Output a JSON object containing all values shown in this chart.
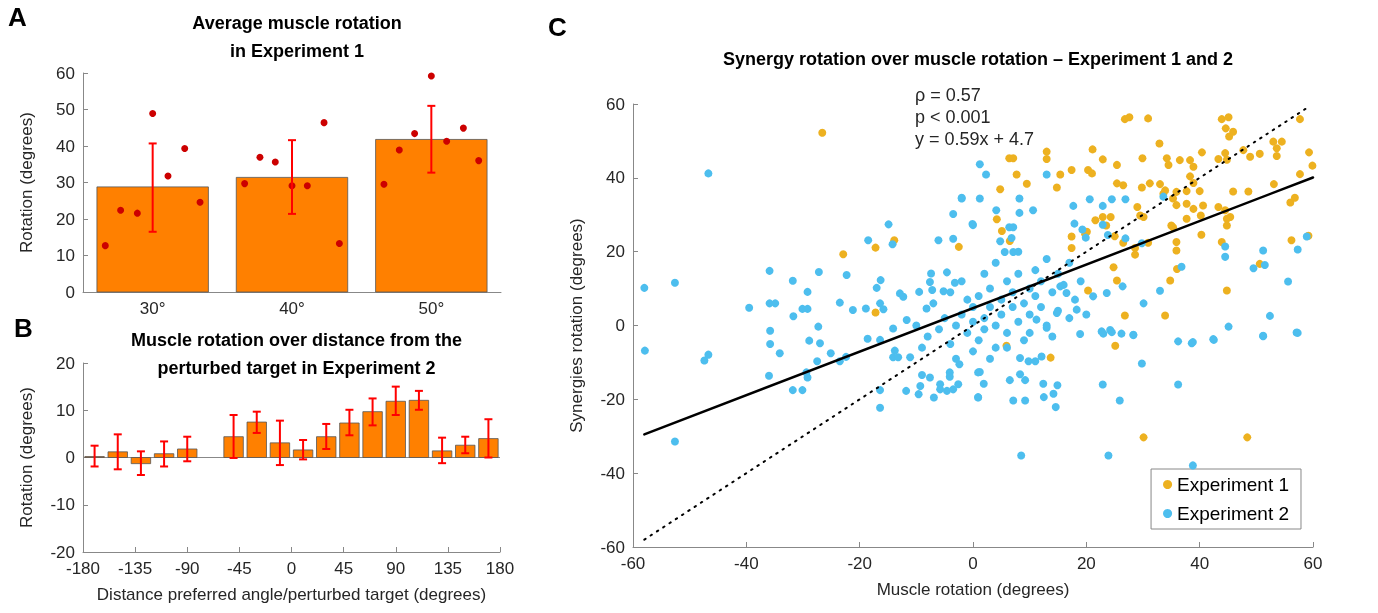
{
  "chart_data": [
    {
      "type": "bar",
      "title": "Average muscle rotation\nin Experiment 1",
      "ylabel": "Rotation (degrees)",
      "annotations": [
        "A"
      ],
      "xlim": [
        25,
        55
      ],
      "xticks": [
        {
          "value": 30,
          "label": "30°"
        },
        {
          "value": 40,
          "label": "40°"
        },
        {
          "value": 50,
          "label": "50°"
        }
      ],
      "ylim": [
        0,
        60
      ],
      "yticks": [
        0,
        10,
        20,
        30,
        40,
        50,
        60
      ],
      "series": [
        {
          "color": "#ff8000",
          "x": [
            30,
            40,
            50
          ],
          "values": [
            28.8,
            31.4,
            41.8
          ],
          "errors": [
            [
              16.5,
              40.7
            ],
            [
              21.4,
              41.6
            ],
            [
              32.7,
              51.0
            ]
          ]
        },
        {
          "type": "scatter",
          "color": "#cc0000",
          "x": [
            26.6,
            27.7,
            28.9,
            30,
            31.1,
            32.3,
            33.4,
            36.6,
            37.7,
            38.8,
            40,
            41.1,
            42.3,
            43.4,
            46.6,
            47.7,
            48.8,
            50,
            51.1,
            52.3,
            53.4
          ],
          "values": [
            12.7,
            22.4,
            21.6,
            48.9,
            31.8,
            39.3,
            24.6,
            29.7,
            36.9,
            35.6,
            29.1,
            29.1,
            46.4,
            13.3,
            29.5,
            38.9,
            43.4,
            59.2,
            41.3,
            44.9,
            36.0
          ]
        }
      ]
    },
    {
      "type": "bar",
      "title": "Muscle rotation over distance from the\nperturbed target in Experiment 2",
      "xlabel": "Distance preferred angle/perturbed target (degrees)",
      "ylabel": "Rotation (degrees)",
      "annotations": [
        "B"
      ],
      "xlim": [
        -180,
        180
      ],
      "xticks": [
        -180,
        -135,
        -90,
        -45,
        0,
        45,
        90,
        135,
        180
      ],
      "ylim": [
        -20,
        20
      ],
      "yticks": [
        -20,
        -10,
        0,
        10,
        20
      ],
      "ref_lines": [
        {
          "axis": "y",
          "value": 0,
          "color": "#888888"
        }
      ],
      "series": [
        {
          "color": "#ff8000",
          "x": [
            -170,
            -150,
            -130,
            -110,
            -90,
            -50,
            -30,
            -10,
            10,
            30,
            50,
            70,
            90,
            110,
            130,
            150,
            170
          ],
          "values": [
            0.2,
            1.2,
            -1.3,
            0.8,
            1.8,
            4.4,
            7.5,
            3.1,
            1.6,
            4.4,
            7.3,
            9.7,
            11.9,
            12.1,
            1.4,
            2.6,
            4.0
          ],
          "errors": [
            [
              -1.9,
              2.5
            ],
            [
              -2.5,
              4.9
            ],
            [
              -3.7,
              1.3
            ],
            [
              -1.9,
              3.4
            ],
            [
              -0.8,
              4.4
            ],
            [
              -0.1,
              9.0
            ],
            [
              5.2,
              9.7
            ],
            [
              -1.6,
              7.8
            ],
            [
              -0.4,
              3.7
            ],
            [
              1.8,
              7.1
            ],
            [
              4.7,
              10.1
            ],
            [
              6.8,
              12.5
            ],
            [
              9.0,
              15.0
            ],
            [
              10.1,
              14.1
            ],
            [
              -1.2,
              4.2
            ],
            [
              0.9,
              4.4
            ],
            [
              0.0,
              8.1
            ]
          ]
        }
      ]
    },
    {
      "type": "scatter",
      "title": "Synergy rotation over muscle rotation – Experiment 1 and 2",
      "xlabel": "Muscle rotation (degrees)",
      "ylabel": "Synergies rotation (degrees)",
      "annotations": [
        "C",
        "ρ = 0.57",
        "p < 0.001",
        "y = 0.59x + 4.7"
      ],
      "xlim": [
        -60,
        60
      ],
      "xticks": [
        -60,
        -40,
        -20,
        0,
        20,
        40,
        60
      ],
      "ylim": [
        -60,
        60
      ],
      "yticks": [
        -60,
        -40,
        -20,
        0,
        20,
        40,
        60
      ],
      "legend": "bottom right",
      "marker": "circle",
      "series": [
        {
          "name": "Experiment 1",
          "color": "#edb120",
          "x": [
            -26.6,
            -22.9,
            -17.2,
            -13.9,
            -17.2,
            -2.5,
            26.8,
            27.6,
            30.9,
            43.9,
            45.1,
            44.6,
            45.9,
            45.2,
            57.7,
            32.9,
            21.1,
            22.9,
            29.9,
            34.2,
            34.5,
            36.5,
            38.3,
            38.9,
            40.4,
            43.3,
            44.5,
            44.8,
            47.7,
            48.9,
            53,
            54.5,
            53.6,
            53.6,
            50.6,
            59.3,
            59.9,
            57.7,
            6.4,
            7.1,
            13,
            13,
            7.7,
            9.5,
            14.8,
            15.4,
            17.4,
            20.3,
            21,
            25.4,
            25.4,
            26.5,
            29.8,
            31.2,
            33,
            33.9,
            33.6,
            35.9,
            35.3,
            35.9,
            38.3,
            38.9,
            37.7,
            40,
            37.7,
            38.9,
            40.6,
            40.2,
            37.7,
            43.3,
            44.5,
            45.4,
            45.9,
            48.6,
            44.8,
            44.8,
            40.3,
            35.3,
            35.9,
            35.9,
            43.9,
            56,
            56.8,
            59.2,
            56.2,
            53.1,
            29.5,
            30.1,
            29,
            24.3,
            23.5,
            21.6,
            22.9,
            20.1,
            25,
            26.5,
            28.6,
            28.6,
            30.9,
            35,
            24.8,
            25.4,
            20.3,
            26.8,
            33.9,
            36,
            34.8,
            44.8,
            50.6,
            17.4,
            17.4,
            19.8,
            6.5,
            5.1,
            4.2,
            4.8,
            25.1,
            13.7,
            5.9,
            30.1,
            48.4
          ],
          "values": [
            52.2,
            19.3,
            21.1,
            23.1,
            3.5,
            21.3,
            55.9,
            56.4,
            56.1,
            55.9,
            56.4,
            53.4,
            52.5,
            51.2,
            55.9,
            49.3,
            47.7,
            45.0,
            45.3,
            45.3,
            43.5,
            44.8,
            44.8,
            43.0,
            46.9,
            45.1,
            46.7,
            44.9,
            47.5,
            45.7,
            49.8,
            49.8,
            48,
            45.9,
            46.5,
            46.9,
            43.3,
            41.0,
            45.3,
            45.3,
            47.1,
            45.1,
            40.9,
            38.4,
            37.4,
            40.9,
            42.1,
            42.1,
            41.2,
            43.5,
            38.5,
            38.0,
            37.4,
            38.5,
            38.3,
            36.6,
            35.7,
            36.2,
            34.4,
            32.6,
            40.4,
            38.6,
            36.4,
            36.4,
            33,
            31.6,
            32.5,
            29.8,
            28.9,
            32.1,
            31.2,
            29.4,
            36.3,
            36.3,
            27.1,
            28.9,
            24.6,
            26.6,
            22.6,
            20.3,
            22.6,
            33.3,
            34.6,
            24.3,
            23.1,
            38.3,
            29.8,
            29.4,
            32.1,
            29.4,
            27.1,
            28.5,
            29.4,
            25.4,
            24.2,
            22.4,
            21.0,
            19.2,
            22.4,
            27.1,
            15.8,
            12.2,
            9.5,
            2.7,
            2.7,
            15.3,
            12.2,
            9.5,
            16.7,
            21.0,
            24.1,
            24.7,
            22.9,
            25.6,
            28.8,
            36.9,
            -5.5,
            -8.7,
            -5.5,
            -30.3,
            -30.3
          ]
        },
        {
          "name": "Experiment 2",
          "color": "#4dbeee",
          "x": [
            -58,
            -52.6,
            -46.7,
            -39.5,
            -35.9,
            -35.9,
            -34.9,
            -35.8,
            -31.8,
            -29.2,
            -31.7,
            -30.1,
            -29.2,
            -27.2,
            -27.3,
            -23.5,
            -22.3,
            -21.2,
            -18.5,
            -14.9,
            -14.2,
            -16.3,
            -17,
            -16.4,
            -18.9,
            -15.8,
            -12.9,
            -12.3,
            -9.5,
            -7.6,
            -7.4,
            -4.6,
            -6.1,
            -3.5,
            -3.5,
            -2,
            -0.1,
            -3.2,
            -7.2,
            -5.2,
            -14.1,
            -11.7,
            -8.2,
            -57.9,
            -52.6,
            -47.4,
            -46.7,
            -35.8,
            -34.1,
            -36,
            -31.8,
            -30.1,
            -29.4,
            -29.2,
            -28.9,
            -27,
            -27.5,
            -25.1,
            -23.5,
            -22.4,
            -18.6,
            -16.4,
            -16.4,
            -16.4,
            -13.8,
            -14.1,
            -13.2,
            -11.1,
            -11.8,
            -9.6,
            -9.3,
            -9,
            -7.6,
            -6.9,
            -5.8,
            -5.8,
            -4.6,
            -4.1,
            -4.1,
            -3.5,
            -2.6,
            -2.4,
            0.9,
            0.9,
            1.2,
            2.3,
            13,
            -2,
            1.2,
            0,
            4.1,
            8.2,
            10.6,
            8.2,
            6.4,
            7.1,
            4.8,
            6.8,
            5.6,
            7.1,
            17.7,
            20.6,
            22.9,
            24.5,
            17.9,
            19.3,
            19.9,
            22.9,
            23.8,
            26.9,
            29.8,
            33.6,
            26.9,
            44.5,
            44.5,
            51.2,
            49.5,
            51.5,
            36.8,
            33,
            30.1,
            57.3,
            58.9,
            55.6,
            52.4,
            45.1,
            51.2,
            57.1,
            36.2,
            38.6,
            42.4,
            28.3,
            24.2,
            22.7,
            18.3,
            20,
            21.2,
            23.6,
            26.4,
            16.5,
            15.4,
            11.2,
            13,
            14.8,
            18.9,
            23,
            24.5,
            26.2,
            28.3,
            29.8,
            38.8,
            42.5,
            51.2,
            57.3,
            36.2,
            22.9,
            25.9,
            8.5,
            23.9,
            38.8,
            12.4,
            14.9,
            14.2,
            14.6,
            12.5,
            9.2,
            8.3,
            6.5,
            7.1,
            9.2,
            1.2,
            1.9,
            0.9,
            9.8,
            11,
            8.3,
            12.1,
            -8,
            -6,
            -5,
            -4,
            -3,
            -2,
            -1,
            0,
            0,
            1,
            1,
            2,
            2,
            3,
            3,
            4,
            4,
            5,
            5,
            6,
            6,
            7,
            7,
            8,
            8,
            9,
            9,
            10,
            10,
            11,
            11,
            12,
            12,
            13,
            13,
            14,
            15,
            15,
            16,
            17,
            18,
            -7,
            -4,
            -2,
            0,
            2,
            4,
            -10,
            -9,
            -1,
            6,
            3,
            -3,
            10,
            8,
            14,
            19,
            17
          ],
          "values": [
            10.2,
            11.6,
            41.2,
            4.8,
            14.8,
            6.0,
            6.0,
            -1.4,
            12.1,
            9.1,
            2.5,
            4.5,
            4.5,
            14.5,
            -0.3,
            6.2,
            13.7,
            4.2,
            23.1,
            27.4,
            22,
            12.3,
            10.2,
            6,
            4.6,
            4.4,
            8.7,
            7.8,
            9.1,
            11.8,
            14.1,
            14.4,
            23.1,
            23.5,
            30.2,
            34.6,
            27.5,
            11.6,
            9.6,
            9.3,
            -0.8,
            1.5,
            4.6,
            -6.8,
            -31.4,
            -9.5,
            -7.9,
            -5,
            -7.5,
            -13.6,
            -17.5,
            -17.5,
            -12.7,
            -14.1,
            -4.1,
            -4.8,
            -9.7,
            -7.5,
            -9.7,
            -8.5,
            -3.6,
            -3.9,
            -17.5,
            -22.3,
            -6.8,
            -8.6,
            -8.6,
            -8.6,
            -17.7,
            -18.6,
            -16.4,
            -13.4,
            -14.1,
            -19.5,
            -15.9,
            -17.3,
            -17.7,
            -12.7,
            -13.9,
            -17.3,
            -15.9,
            -10.5,
            -19.5,
            -12.7,
            43.7,
            40.9,
            40.9,
            34.4,
            34.4,
            27.2,
            31.2,
            30.5,
            31.2,
            34.4,
            26.6,
            26.6,
            22.8,
            23.7,
            19.9,
            19.9,
            32.4,
            34.2,
            32.4,
            34.2,
            27.6,
            26.0,
            23.8,
            27.3,
            24.5,
            23.6,
            22.3,
            34.9,
            34.2,
            21.4,
            18.6,
            20.3,
            15.5,
            16.4,
            15.9,
            9.4,
            6,
            20.6,
            24.1,
            11.9,
            2.6,
            -0.3,
            -2.8,
            -1.9,
            -4.3,
            -4.8,
            -3.7,
            -2.5,
            -1.2,
            -1.6,
            4.3,
            3,
            7.9,
            8.8,
            10.6,
            8.8,
            10.6,
            1.6,
            -0.6,
            3.4,
            -2.3,
            -2.2,
            -1.8,
            -2.2,
            -2.6,
            -10.3,
            -4.5,
            -3.9,
            -2.9,
            -2,
            -16,
            -16,
            -20.3,
            -35.2,
            -35.2,
            -37.9,
            -15.8,
            -16.2,
            -18.5,
            -22.1,
            -19.4,
            -14.8,
            -13.2,
            -14.8,
            -20.3,
            -20.3,
            -12.6,
            -15.8,
            -19.4,
            -9.7,
            -9.7,
            -8.8,
            -8.4,
            -3,
            -1,
            2,
            -5,
            0,
            3,
            -2,
            1,
            5,
            -4,
            8,
            2,
            -1,
            5,
            10,
            0,
            -6,
            3,
            7,
            12,
            -2,
            5,
            9,
            1,
            14,
            6,
            -4,
            10,
            3,
            8,
            15,
            5,
            12,
            0,
            18,
            9,
            14,
            4,
            11,
            17,
            7,
            6,
            9,
            12,
            -7,
            14,
            17,
            0,
            -6,
            7,
            -6,
            -9,
            -9,
            -2,
            20,
            -3,
            12,
            2
          ]
        },
        {
          "type": "line",
          "color": "#000000",
          "line_style": "solid",
          "marker": "none",
          "x": [
            -58,
            60
          ],
          "values": [
            -29.5,
            40.1
          ]
        },
        {
          "type": "line",
          "color": "#000000",
          "line_style": "dotted",
          "marker": "none",
          "x": [
            -58,
            59
          ],
          "values": [
            -58,
            59
          ]
        }
      ]
    }
  ]
}
